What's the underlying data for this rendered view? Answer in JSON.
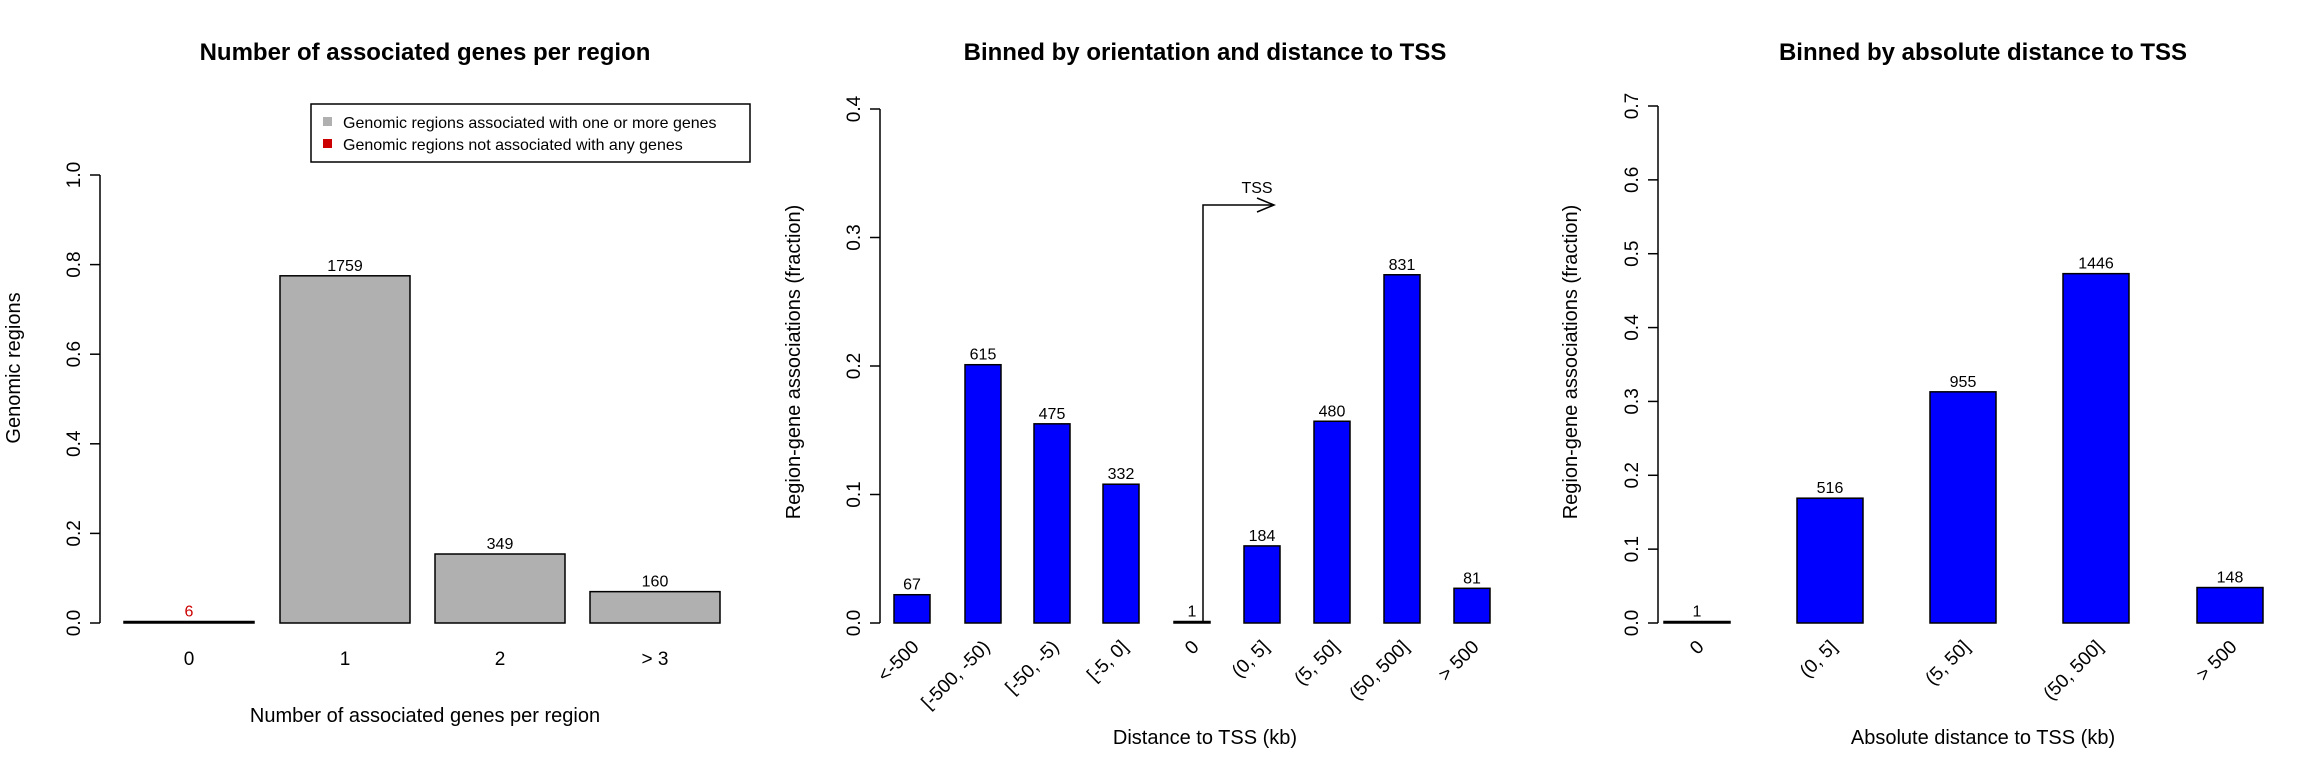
{
  "colors": {
    "gray": "#b0b0b0",
    "blue": "#0000ff",
    "red": "#cc0000"
  },
  "chart_data": [
    {
      "type": "bar",
      "title": "Number of associated genes per region",
      "xlabel": "Number of associated genes per region",
      "ylabel": "Genomic regions",
      "ylim": [
        0,
        1
      ],
      "yticks": [
        "0.0",
        "0.2",
        "0.4",
        "0.6",
        "0.8",
        "1.0"
      ],
      "categories": [
        "0",
        "1",
        "2",
        "> 3"
      ],
      "values": [
        0.003,
        0.775,
        0.154,
        0.07
      ],
      "labels": [
        "6",
        "1759",
        "349",
        "160"
      ],
      "bar_colors": [
        "red",
        "gray",
        "gray",
        "gray"
      ],
      "grid": false,
      "legend": {
        "position": "top-right",
        "entries": [
          {
            "label": "Genomic regions associated with one or more genes",
            "color": "gray"
          },
          {
            "label": "Genomic regions not associated with any genes",
            "color": "red"
          }
        ]
      }
    },
    {
      "type": "bar",
      "title": "Binned by orientation and distance to TSS",
      "xlabel": "Distance to TSS (kb)",
      "ylabel": "Region-gene associations (fraction)",
      "ylim": [
        0,
        0.4
      ],
      "yticks": [
        "0.0",
        "0.1",
        "0.2",
        "0.3",
        "0.4"
      ],
      "categories": [
        "<-500",
        "[-500, -50)",
        "[-50, -5)",
        "[-5, 0]",
        "0",
        "(0, 5]",
        "(5, 50]",
        "(50, 500]",
        "> 500"
      ],
      "values": [
        0.022,
        0.201,
        0.155,
        0.108,
        0.0003,
        0.06,
        0.157,
        0.271,
        0.027
      ],
      "labels": [
        "67",
        "615",
        "475",
        "332",
        "1",
        "184",
        "480",
        "831",
        "81"
      ],
      "grid": false,
      "annotation": "TSS"
    },
    {
      "type": "bar",
      "title": "Binned by absolute distance to TSS",
      "xlabel": "Absolute distance to TSS (kb)",
      "ylabel": "Region-gene associations (fraction)",
      "ylim": [
        0,
        0.7
      ],
      "yticks": [
        "0.0",
        "0.1",
        "0.2",
        "0.3",
        "0.4",
        "0.5",
        "0.6",
        "0.7"
      ],
      "categories": [
        "0",
        "(0, 5]",
        "(5, 50]",
        "(50, 500]",
        "> 500"
      ],
      "values": [
        0.0003,
        0.169,
        0.313,
        0.473,
        0.048
      ],
      "labels": [
        "1",
        "516",
        "955",
        "1446",
        "148"
      ],
      "grid": false
    }
  ]
}
